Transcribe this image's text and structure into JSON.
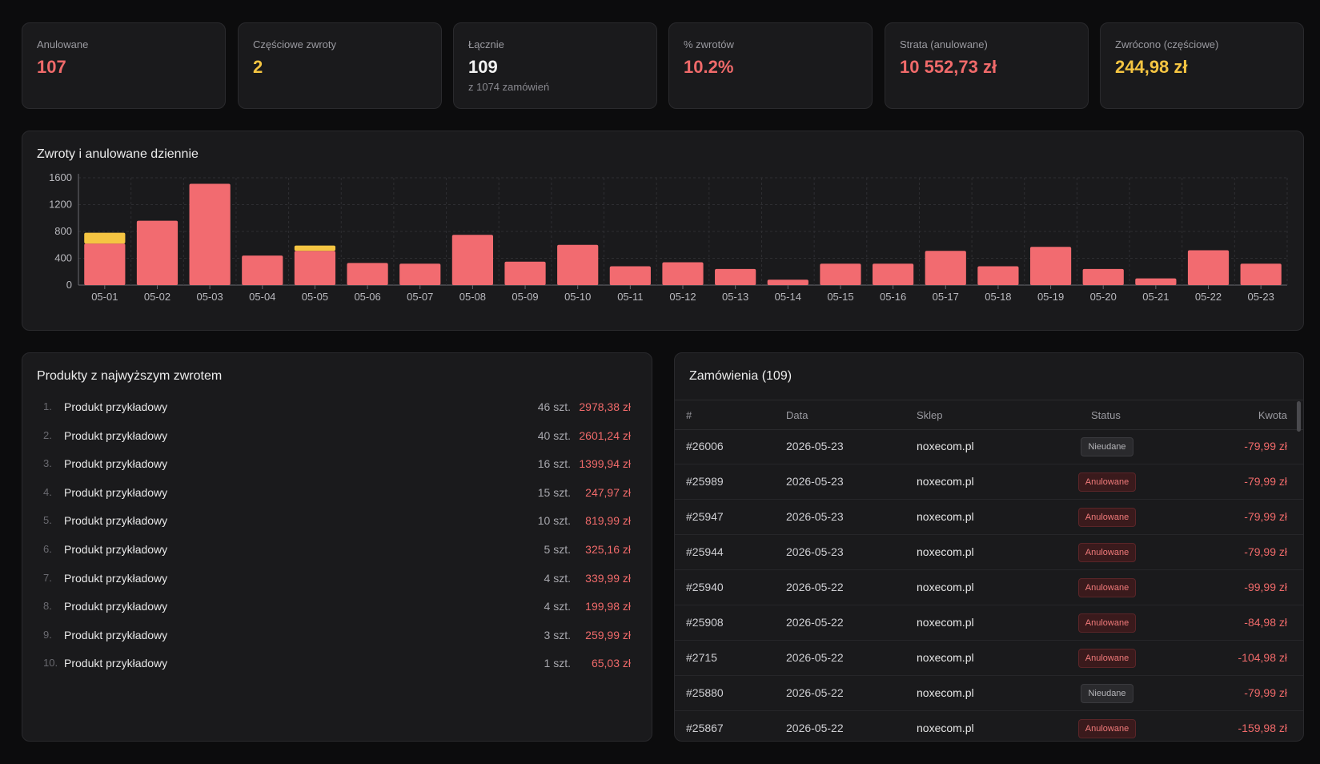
{
  "stats": [
    {
      "label": "Anulowane",
      "value": "107",
      "color": "#f06a6a"
    },
    {
      "label": "Częściowe zwroty",
      "value": "2",
      "color": "#f5c542"
    },
    {
      "label": "Łącznie",
      "value": "109",
      "sub": "z 1074 zamówień",
      "color": "#f2f2f2"
    },
    {
      "label": "% zwrotów",
      "value": "10.2%",
      "color": "#f06a6a"
    },
    {
      "label": "Strata (anulowane)",
      "value": "10 552,73 zł",
      "color": "#f06a6a"
    },
    {
      "label": "Zwrócono (częściowe)",
      "value": "244,98 zł",
      "color": "#f5c542"
    }
  ],
  "chart_title": "Zwroty i anulowane dziennie",
  "chart_data": {
    "type": "bar",
    "stacked": true,
    "categories": [
      "05-01",
      "05-02",
      "05-03",
      "05-04",
      "05-05",
      "05-06",
      "05-07",
      "05-08",
      "05-09",
      "05-10",
      "05-11",
      "05-12",
      "05-13",
      "05-14",
      "05-15",
      "05-16",
      "05-17",
      "05-18",
      "05-19",
      "05-20",
      "05-21",
      "05-22",
      "05-23"
    ],
    "series": [
      {
        "color": "#f26b70",
        "values": [
          620,
          960,
          1510,
          440,
          510,
          330,
          320,
          750,
          350,
          600,
          280,
          340,
          240,
          80,
          320,
          320,
          510,
          280,
          570,
          240,
          100,
          520,
          320
        ]
      },
      {
        "color": "#f5c542",
        "values": [
          160,
          0,
          0,
          0,
          80,
          0,
          0,
          0,
          0,
          0,
          0,
          0,
          0,
          0,
          0,
          0,
          0,
          0,
          0,
          0,
          0,
          0,
          0
        ]
      }
    ],
    "yticks": [
      "0",
      "400",
      "800",
      "1200",
      "1600"
    ],
    "ylim": [
      0,
      1600
    ],
    "grid": true
  },
  "products": {
    "title": "Produkty z najwyższym zwrotem",
    "items": [
      {
        "idx": "1.",
        "name": "Produkt przykładowy",
        "qty": "46 szt.",
        "amount": "2978,38 zł"
      },
      {
        "idx": "2.",
        "name": "Produkt przykładowy",
        "qty": "40 szt.",
        "amount": "2601,24 zł"
      },
      {
        "idx": "3.",
        "name": "Produkt przykładowy",
        "qty": "16 szt.",
        "amount": "1399,94 zł"
      },
      {
        "idx": "4.",
        "name": "Produkt przykładowy",
        "qty": "15 szt.",
        "amount": "247,97 zł"
      },
      {
        "idx": "5.",
        "name": "Produkt przykładowy",
        "qty": "10 szt.",
        "amount": "819,99 zł"
      },
      {
        "idx": "6.",
        "name": "Produkt przykładowy",
        "qty": "5 szt.",
        "amount": "325,16 zł"
      },
      {
        "idx": "7.",
        "name": "Produkt przykładowy",
        "qty": "4 szt.",
        "amount": "339,99 zł"
      },
      {
        "idx": "8.",
        "name": "Produkt przykładowy",
        "qty": "4 szt.",
        "amount": "199,98 zł"
      },
      {
        "idx": "9.",
        "name": "Produkt przykładowy",
        "qty": "3 szt.",
        "amount": "259,99 zł"
      },
      {
        "idx": "10.",
        "name": "Produkt przykładowy",
        "qty": "1 szt.",
        "amount": "65,03 zł"
      }
    ]
  },
  "orders": {
    "title": "Zamówienia (109)",
    "columns": {
      "id": "#",
      "date": "Data",
      "shop": "Sklep",
      "status": "Status",
      "amount": "Kwota"
    },
    "rows": [
      {
        "id": "#26006",
        "date": "2026-05-23",
        "shop": "noxecom.pl",
        "status": "Nieudane",
        "kind": "fail",
        "amount": "-79,99 zł"
      },
      {
        "id": "#25989",
        "date": "2026-05-23",
        "shop": "noxecom.pl",
        "status": "Anulowane",
        "kind": "cancel",
        "amount": "-79,99 zł"
      },
      {
        "id": "#25947",
        "date": "2026-05-23",
        "shop": "noxecom.pl",
        "status": "Anulowane",
        "kind": "cancel",
        "amount": "-79,99 zł"
      },
      {
        "id": "#25944",
        "date": "2026-05-23",
        "shop": "noxecom.pl",
        "status": "Anulowane",
        "kind": "cancel",
        "amount": "-79,99 zł"
      },
      {
        "id": "#25940",
        "date": "2026-05-22",
        "shop": "noxecom.pl",
        "status": "Anulowane",
        "kind": "cancel",
        "amount": "-99,99 zł"
      },
      {
        "id": "#25908",
        "date": "2026-05-22",
        "shop": "noxecom.pl",
        "status": "Anulowane",
        "kind": "cancel",
        "amount": "-84,98 zł"
      },
      {
        "id": "#2715",
        "date": "2026-05-22",
        "shop": "noxecom.pl",
        "status": "Anulowane",
        "kind": "cancel",
        "amount": "-104,98 zł"
      },
      {
        "id": "#25880",
        "date": "2026-05-22",
        "shop": "noxecom.pl",
        "status": "Nieudane",
        "kind": "fail",
        "amount": "-79,99 zł"
      },
      {
        "id": "#25867",
        "date": "2026-05-22",
        "shop": "noxecom.pl",
        "status": "Anulowane",
        "kind": "cancel",
        "amount": "-159,98 zł"
      }
    ]
  }
}
